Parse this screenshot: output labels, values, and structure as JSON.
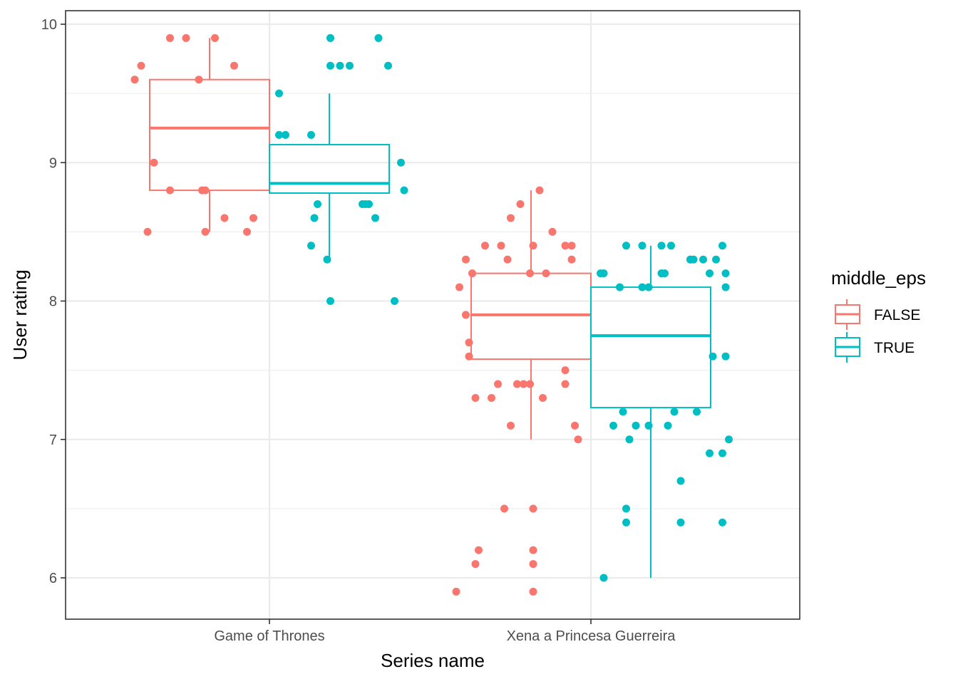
{
  "chart_data": {
    "type": "box",
    "xlabel": "Series name",
    "ylabel": "User rating",
    "categories": [
      "Game of Thrones",
      "Xena a Princesa Guerreira"
    ],
    "ylim": [
      5.7,
      10.1
    ],
    "yticks": [
      6,
      7,
      8,
      9,
      10
    ],
    "grid": true,
    "legend": {
      "title": "middle_eps",
      "position": "right",
      "entries": [
        "FALSE",
        "TRUE"
      ]
    },
    "colors": {
      "FALSE": "#F8766D",
      "TRUE": "#00BFC4"
    },
    "boxes": [
      {
        "category": "Game of Thrones",
        "group": "FALSE",
        "whisker_low": 8.5,
        "q1": 8.8,
        "median": 9.25,
        "q3": 9.6,
        "whisker_high": 9.9
      },
      {
        "category": "Game of Thrones",
        "group": "TRUE",
        "whisker_low": 8.3,
        "q1": 8.78,
        "median": 8.85,
        "q3": 9.13,
        "whisker_high": 9.5
      },
      {
        "category": "Xena a Princesa Guerreira",
        "group": "FALSE",
        "whisker_low": 7.0,
        "q1": 7.58,
        "median": 7.9,
        "q3": 8.2,
        "whisker_high": 8.8
      },
      {
        "category": "Xena a Princesa Guerreira",
        "group": "TRUE",
        "whisker_low": 6.0,
        "q1": 7.23,
        "median": 7.75,
        "q3": 8.1,
        "whisker_high": 8.4
      }
    ],
    "points": [
      {
        "category": "Game of Thrones",
        "group": "FALSE",
        "offset": -0.42,
        "y": 9.6
      },
      {
        "category": "Game of Thrones",
        "group": "FALSE",
        "offset": -0.4,
        "y": 9.7
      },
      {
        "category": "Game of Thrones",
        "group": "FALSE",
        "offset": -0.38,
        "y": 8.5
      },
      {
        "category": "Game of Thrones",
        "group": "FALSE",
        "offset": -0.36,
        "y": 9.0
      },
      {
        "category": "Game of Thrones",
        "group": "FALSE",
        "offset": -0.31,
        "y": 9.9
      },
      {
        "category": "Game of Thrones",
        "group": "FALSE",
        "offset": -0.31,
        "y": 8.8
      },
      {
        "category": "Game of Thrones",
        "group": "FALSE",
        "offset": -0.26,
        "y": 9.9
      },
      {
        "category": "Game of Thrones",
        "group": "FALSE",
        "offset": -0.22,
        "y": 9.6
      },
      {
        "category": "Game of Thrones",
        "group": "FALSE",
        "offset": -0.21,
        "y": 8.8
      },
      {
        "category": "Game of Thrones",
        "group": "FALSE",
        "offset": -0.2,
        "y": 8.8
      },
      {
        "category": "Game of Thrones",
        "group": "FALSE",
        "offset": -0.2,
        "y": 8.5
      },
      {
        "category": "Game of Thrones",
        "group": "FALSE",
        "offset": -0.17,
        "y": 9.9
      },
      {
        "category": "Game of Thrones",
        "group": "FALSE",
        "offset": -0.14,
        "y": 8.6
      },
      {
        "category": "Game of Thrones",
        "group": "FALSE",
        "offset": -0.11,
        "y": 9.7
      },
      {
        "category": "Game of Thrones",
        "group": "FALSE",
        "offset": -0.07,
        "y": 8.5
      },
      {
        "category": "Game of Thrones",
        "group": "FALSE",
        "offset": -0.05,
        "y": 8.6
      },
      {
        "category": "Game of Thrones",
        "group": "TRUE",
        "offset": 0.03,
        "y": 9.5
      },
      {
        "category": "Game of Thrones",
        "group": "TRUE",
        "offset": 0.03,
        "y": 9.2
      },
      {
        "category": "Game of Thrones",
        "group": "TRUE",
        "offset": 0.05,
        "y": 9.2
      },
      {
        "category": "Game of Thrones",
        "group": "TRUE",
        "offset": 0.13,
        "y": 8.4
      },
      {
        "category": "Game of Thrones",
        "group": "TRUE",
        "offset": 0.13,
        "y": 9.2
      },
      {
        "category": "Game of Thrones",
        "group": "TRUE",
        "offset": 0.14,
        "y": 8.6
      },
      {
        "category": "Game of Thrones",
        "group": "TRUE",
        "offset": 0.15,
        "y": 8.7
      },
      {
        "category": "Game of Thrones",
        "group": "TRUE",
        "offset": 0.18,
        "y": 8.3
      },
      {
        "category": "Game of Thrones",
        "group": "TRUE",
        "offset": 0.19,
        "y": 9.9
      },
      {
        "category": "Game of Thrones",
        "group": "TRUE",
        "offset": 0.19,
        "y": 9.7
      },
      {
        "category": "Game of Thrones",
        "group": "TRUE",
        "offset": 0.19,
        "y": 8.0
      },
      {
        "category": "Game of Thrones",
        "group": "TRUE",
        "offset": 0.22,
        "y": 9.7
      },
      {
        "category": "Game of Thrones",
        "group": "TRUE",
        "offset": 0.25,
        "y": 9.7
      },
      {
        "category": "Game of Thrones",
        "group": "TRUE",
        "offset": 0.29,
        "y": 8.7
      },
      {
        "category": "Game of Thrones",
        "group": "TRUE",
        "offset": 0.3,
        "y": 8.7
      },
      {
        "category": "Game of Thrones",
        "group": "TRUE",
        "offset": 0.31,
        "y": 8.7
      },
      {
        "category": "Game of Thrones",
        "group": "TRUE",
        "offset": 0.33,
        "y": 8.6
      },
      {
        "category": "Game of Thrones",
        "group": "TRUE",
        "offset": 0.34,
        "y": 9.9
      },
      {
        "category": "Game of Thrones",
        "group": "TRUE",
        "offset": 0.37,
        "y": 9.7
      },
      {
        "category": "Game of Thrones",
        "group": "TRUE",
        "offset": 0.39,
        "y": 8.0
      },
      {
        "category": "Game of Thrones",
        "group": "TRUE",
        "offset": 0.41,
        "y": 9.0
      },
      {
        "category": "Game of Thrones",
        "group": "TRUE",
        "offset": 0.42,
        "y": 8.8
      },
      {
        "category": "Xena a Princesa Guerreira",
        "group": "FALSE",
        "offset": -0.42,
        "y": 5.9
      },
      {
        "category": "Xena a Princesa Guerreira",
        "group": "FALSE",
        "offset": -0.41,
        "y": 8.1
      },
      {
        "category": "Xena a Princesa Guerreira",
        "group": "FALSE",
        "offset": -0.39,
        "y": 8.3
      },
      {
        "category": "Xena a Princesa Guerreira",
        "group": "FALSE",
        "offset": -0.39,
        "y": 7.9
      },
      {
        "category": "Xena a Princesa Guerreira",
        "group": "FALSE",
        "offset": -0.38,
        "y": 7.7
      },
      {
        "category": "Xena a Princesa Guerreira",
        "group": "FALSE",
        "offset": -0.38,
        "y": 7.6
      },
      {
        "category": "Xena a Princesa Guerreira",
        "group": "FALSE",
        "offset": -0.37,
        "y": 8.2
      },
      {
        "category": "Xena a Princesa Guerreira",
        "group": "FALSE",
        "offset": -0.36,
        "y": 7.3
      },
      {
        "category": "Xena a Princesa Guerreira",
        "group": "FALSE",
        "offset": -0.36,
        "y": 6.1
      },
      {
        "category": "Xena a Princesa Guerreira",
        "group": "FALSE",
        "offset": -0.35,
        "y": 6.2
      },
      {
        "category": "Xena a Princesa Guerreira",
        "group": "FALSE",
        "offset": -0.33,
        "y": 8.4
      },
      {
        "category": "Xena a Princesa Guerreira",
        "group": "FALSE",
        "offset": -0.31,
        "y": 7.3
      },
      {
        "category": "Xena a Princesa Guerreira",
        "group": "FALSE",
        "offset": -0.29,
        "y": 7.4
      },
      {
        "category": "Xena a Princesa Guerreira",
        "group": "FALSE",
        "offset": -0.28,
        "y": 8.4
      },
      {
        "category": "Xena a Princesa Guerreira",
        "group": "FALSE",
        "offset": -0.27,
        "y": 6.5
      },
      {
        "category": "Xena a Princesa Guerreira",
        "group": "FALSE",
        "offset": -0.26,
        "y": 8.3
      },
      {
        "category": "Xena a Princesa Guerreira",
        "group": "FALSE",
        "offset": -0.25,
        "y": 8.6
      },
      {
        "category": "Xena a Princesa Guerreira",
        "group": "FALSE",
        "offset": -0.25,
        "y": 7.1
      },
      {
        "category": "Xena a Princesa Guerreira",
        "group": "FALSE",
        "offset": -0.23,
        "y": 7.4
      },
      {
        "category": "Xena a Princesa Guerreira",
        "group": "FALSE",
        "offset": -0.22,
        "y": 8.7
      },
      {
        "category": "Xena a Princesa Guerreira",
        "group": "FALSE",
        "offset": -0.21,
        "y": 7.4
      },
      {
        "category": "Xena a Princesa Guerreira",
        "group": "FALSE",
        "offset": -0.19,
        "y": 7.4
      },
      {
        "category": "Xena a Princesa Guerreira",
        "group": "FALSE",
        "offset": -0.19,
        "y": 8.2
      },
      {
        "category": "Xena a Princesa Guerreira",
        "group": "FALSE",
        "offset": -0.18,
        "y": 6.5
      },
      {
        "category": "Xena a Princesa Guerreira",
        "group": "FALSE",
        "offset": -0.18,
        "y": 6.2
      },
      {
        "category": "Xena a Princesa Guerreira",
        "group": "FALSE",
        "offset": -0.18,
        "y": 6.1
      },
      {
        "category": "Xena a Princesa Guerreira",
        "group": "FALSE",
        "offset": -0.18,
        "y": 5.9
      },
      {
        "category": "Xena a Princesa Guerreira",
        "group": "FALSE",
        "offset": -0.18,
        "y": 8.4
      },
      {
        "category": "Xena a Princesa Guerreira",
        "group": "FALSE",
        "offset": -0.16,
        "y": 8.8
      },
      {
        "category": "Xena a Princesa Guerreira",
        "group": "FALSE",
        "offset": -0.15,
        "y": 7.3
      },
      {
        "category": "Xena a Princesa Guerreira",
        "group": "FALSE",
        "offset": -0.14,
        "y": 8.2
      },
      {
        "category": "Xena a Princesa Guerreira",
        "group": "FALSE",
        "offset": -0.12,
        "y": 8.5
      },
      {
        "category": "Xena a Princesa Guerreira",
        "group": "FALSE",
        "offset": -0.08,
        "y": 7.5
      },
      {
        "category": "Xena a Princesa Guerreira",
        "group": "FALSE",
        "offset": -0.08,
        "y": 7.4
      },
      {
        "category": "Xena a Princesa Guerreira",
        "group": "FALSE",
        "offset": -0.08,
        "y": 8.4
      },
      {
        "category": "Xena a Princesa Guerreira",
        "group": "FALSE",
        "offset": -0.06,
        "y": 8.4
      },
      {
        "category": "Xena a Princesa Guerreira",
        "group": "FALSE",
        "offset": -0.06,
        "y": 8.3
      },
      {
        "category": "Xena a Princesa Guerreira",
        "group": "FALSE",
        "offset": -0.05,
        "y": 7.1
      },
      {
        "category": "Xena a Princesa Guerreira",
        "group": "FALSE",
        "offset": -0.04,
        "y": 7.0
      },
      {
        "category": "Xena a Princesa Guerreira",
        "group": "TRUE",
        "offset": 0.03,
        "y": 8.2
      },
      {
        "category": "Xena a Princesa Guerreira",
        "group": "TRUE",
        "offset": 0.04,
        "y": 6.0
      },
      {
        "category": "Xena a Princesa Guerreira",
        "group": "TRUE",
        "offset": 0.04,
        "y": 8.2
      },
      {
        "category": "Xena a Princesa Guerreira",
        "group": "TRUE",
        "offset": 0.07,
        "y": 7.1
      },
      {
        "category": "Xena a Princesa Guerreira",
        "group": "TRUE",
        "offset": 0.09,
        "y": 8.1
      },
      {
        "category": "Xena a Princesa Guerreira",
        "group": "TRUE",
        "offset": 0.1,
        "y": 7.2
      },
      {
        "category": "Xena a Princesa Guerreira",
        "group": "TRUE",
        "offset": 0.11,
        "y": 6.4
      },
      {
        "category": "Xena a Princesa Guerreira",
        "group": "TRUE",
        "offset": 0.11,
        "y": 8.4
      },
      {
        "category": "Xena a Princesa Guerreira",
        "group": "TRUE",
        "offset": 0.11,
        "y": 6.5
      },
      {
        "category": "Xena a Princesa Guerreira",
        "group": "TRUE",
        "offset": 0.12,
        "y": 7.0
      },
      {
        "category": "Xena a Princesa Guerreira",
        "group": "TRUE",
        "offset": 0.14,
        "y": 7.1
      },
      {
        "category": "Xena a Princesa Guerreira",
        "group": "TRUE",
        "offset": 0.16,
        "y": 8.1
      },
      {
        "category": "Xena a Princesa Guerreira",
        "group": "TRUE",
        "offset": 0.16,
        "y": 8.4
      },
      {
        "category": "Xena a Princesa Guerreira",
        "group": "TRUE",
        "offset": 0.18,
        "y": 8.1
      },
      {
        "category": "Xena a Princesa Guerreira",
        "group": "TRUE",
        "offset": 0.18,
        "y": 7.1
      },
      {
        "category": "Xena a Princesa Guerreira",
        "group": "TRUE",
        "offset": 0.22,
        "y": 8.4
      },
      {
        "category": "Xena a Princesa Guerreira",
        "group": "TRUE",
        "offset": 0.22,
        "y": 8.2
      },
      {
        "category": "Xena a Princesa Guerreira",
        "group": "TRUE",
        "offset": 0.23,
        "y": 8.2
      },
      {
        "category": "Xena a Princesa Guerreira",
        "group": "TRUE",
        "offset": 0.24,
        "y": 7.1
      },
      {
        "category": "Xena a Princesa Guerreira",
        "group": "TRUE",
        "offset": 0.25,
        "y": 8.4
      },
      {
        "category": "Xena a Princesa Guerreira",
        "group": "TRUE",
        "offset": 0.26,
        "y": 7.2
      },
      {
        "category": "Xena a Princesa Guerreira",
        "group": "TRUE",
        "offset": 0.28,
        "y": 6.4
      },
      {
        "category": "Xena a Princesa Guerreira",
        "group": "TRUE",
        "offset": 0.28,
        "y": 6.7
      },
      {
        "category": "Xena a Princesa Guerreira",
        "group": "TRUE",
        "offset": 0.31,
        "y": 8.3
      },
      {
        "category": "Xena a Princesa Guerreira",
        "group": "TRUE",
        "offset": 0.31,
        "y": 8.3
      },
      {
        "category": "Xena a Princesa Guerreira",
        "group": "TRUE",
        "offset": 0.32,
        "y": 8.3
      },
      {
        "category": "Xena a Princesa Guerreira",
        "group": "TRUE",
        "offset": 0.33,
        "y": 7.2
      },
      {
        "category": "Xena a Princesa Guerreira",
        "group": "TRUE",
        "offset": 0.35,
        "y": 8.3
      },
      {
        "category": "Xena a Princesa Guerreira",
        "group": "TRUE",
        "offset": 0.37,
        "y": 6.9
      },
      {
        "category": "Xena a Princesa Guerreira",
        "group": "TRUE",
        "offset": 0.37,
        "y": 8.2
      },
      {
        "category": "Xena a Princesa Guerreira",
        "group": "TRUE",
        "offset": 0.38,
        "y": 7.6
      },
      {
        "category": "Xena a Princesa Guerreira",
        "group": "TRUE",
        "offset": 0.39,
        "y": 8.3
      },
      {
        "category": "Xena a Princesa Guerreira",
        "group": "TRUE",
        "offset": 0.41,
        "y": 6.9
      },
      {
        "category": "Xena a Princesa Guerreira",
        "group": "TRUE",
        "offset": 0.41,
        "y": 8.4
      },
      {
        "category": "Xena a Princesa Guerreira",
        "group": "TRUE",
        "offset": 0.41,
        "y": 6.4
      },
      {
        "category": "Xena a Princesa Guerreira",
        "group": "TRUE",
        "offset": 0.42,
        "y": 8.2
      },
      {
        "category": "Xena a Princesa Guerreira",
        "group": "TRUE",
        "offset": 0.42,
        "y": 7.6
      },
      {
        "category": "Xena a Princesa Guerreira",
        "group": "TRUE",
        "offset": 0.42,
        "y": 8.1
      },
      {
        "category": "Xena a Princesa Guerreira",
        "group": "TRUE",
        "offset": 0.43,
        "y": 7.0
      }
    ]
  }
}
